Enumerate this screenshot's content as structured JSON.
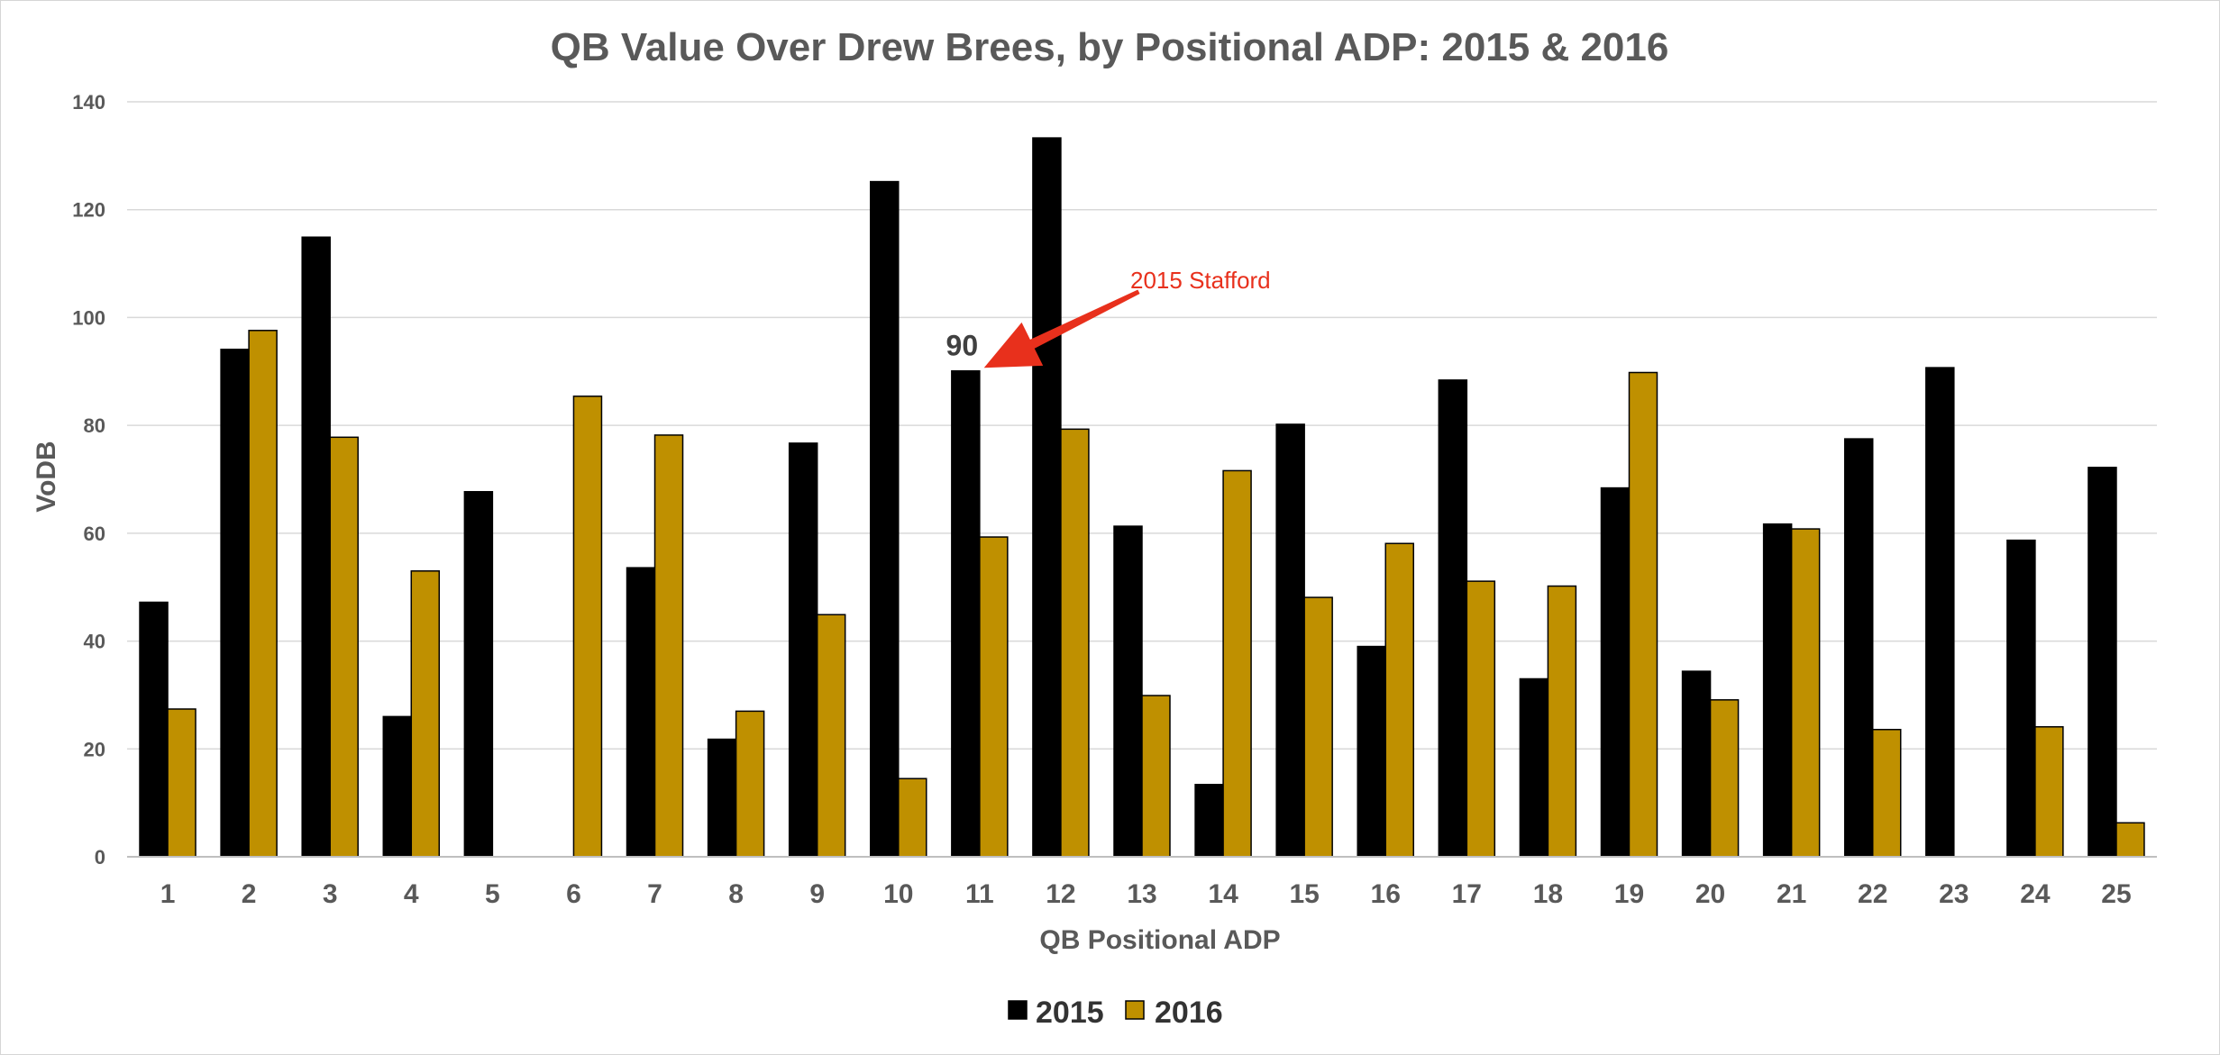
{
  "chart_data": {
    "type": "bar",
    "title": "QB Value Over Drew Brees, by Positional ADP: 2015 & 2016",
    "xlabel": "QB Positional ADP",
    "ylabel": "VoDB",
    "ylim": [
      0,
      140
    ],
    "yticks": [
      0,
      20,
      40,
      60,
      80,
      100,
      120,
      140
    ],
    "grid": true,
    "legend_position": "bottom",
    "categories": [
      "1",
      "2",
      "3",
      "4",
      "5",
      "6",
      "7",
      "8",
      "9",
      "10",
      "11",
      "12",
      "13",
      "14",
      "15",
      "16",
      "17",
      "18",
      "19",
      "20",
      "21",
      "22",
      "23",
      "24",
      "25"
    ],
    "series": [
      {
        "name": "2015",
        "color": "#000000",
        "values": [
          47.2,
          94.1,
          114.9,
          26.0,
          67.7,
          null,
          53.6,
          21.8,
          76.7,
          125.2,
          90.1,
          133.3,
          61.3,
          13.4,
          80.2,
          39.0,
          88.4,
          33.0,
          68.4,
          34.4,
          61.7,
          77.5,
          90.7,
          58.7,
          72.2
        ]
      },
      {
        "name": "2016",
        "color": "#bf9000",
        "values": [
          27.4,
          97.6,
          77.8,
          53.0,
          null,
          85.4,
          78.2,
          27.0,
          44.9,
          14.5,
          59.3,
          79.3,
          29.9,
          71.6,
          48.1,
          58.1,
          51.1,
          50.2,
          89.8,
          29.1,
          60.8,
          23.6,
          null,
          24.1,
          6.3
        ]
      }
    ],
    "data_labels": [
      {
        "series": "2015",
        "category": "11",
        "text": "90"
      }
    ],
    "annotations": [
      {
        "text": "2015 Stafford",
        "color": "#e8301c",
        "target_series": "2015",
        "target_category": "11"
      }
    ]
  }
}
